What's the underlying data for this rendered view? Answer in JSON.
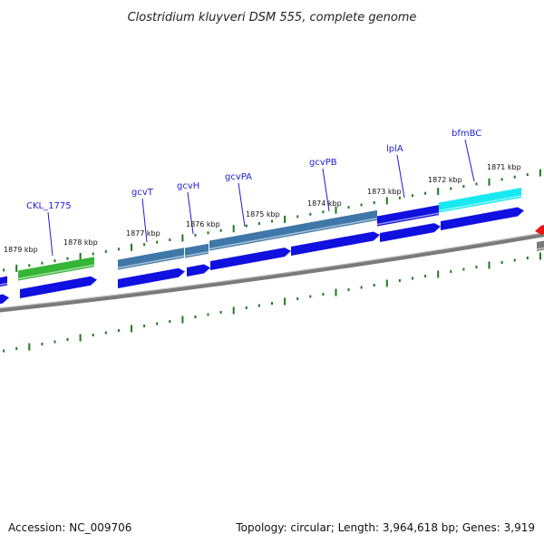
{
  "title": "Clostridium kluyveri DSM 555, complete genome",
  "accession": "Accession: NC_009706",
  "topology": "Topology: circular; Length: 3,964,618 bp; Genes: 3,919",
  "colors": {
    "background": "#ffffff",
    "backbone": "#7a7a7a",
    "tick": "#1f7a1f",
    "cds": "#1010e0",
    "cds_green": "#35b535",
    "cds_steel": "#3f78a8",
    "cds_cyan": "#18e8f0",
    "cds_red": "#ee1111",
    "label": "#1d1dd6"
  },
  "ticks": [
    {
      "label": "1879 kbp"
    },
    {
      "label": "1878 kbp"
    },
    {
      "label": "1877 kbp"
    },
    {
      "label": "1876 kbp"
    },
    {
      "label": "1875 kbp"
    },
    {
      "label": "1874 kbp"
    },
    {
      "label": "1873 kbp"
    },
    {
      "label": "1872 kbp"
    },
    {
      "label": "1871 kbp"
    }
  ],
  "genes": [
    {
      "name": "CKL_1775",
      "color": "cds_green"
    },
    {
      "name": "gcvT",
      "color": "cds_steel"
    },
    {
      "name": "gcvH",
      "color": "cds_steel"
    },
    {
      "name": "gcvPA",
      "color": "cds_steel"
    },
    {
      "name": "gcvPB",
      "color": "cds_steel"
    },
    {
      "name": "lplA",
      "color": "cds"
    },
    {
      "name": "bfmBC",
      "color": "cds_cyan"
    }
  ]
}
